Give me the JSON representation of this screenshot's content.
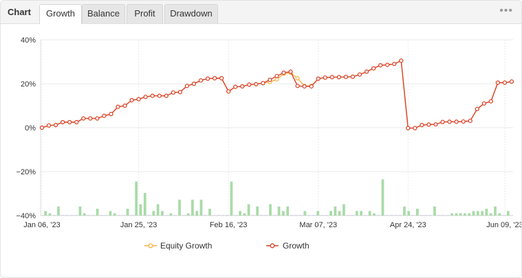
{
  "tabs": {
    "title": "Chart",
    "items": [
      {
        "label": "Growth",
        "active": true
      },
      {
        "label": "Balance",
        "active": false
      },
      {
        "label": "Profit",
        "active": false
      },
      {
        "label": "Drawdown",
        "active": false
      }
    ],
    "more_icon": "ellipsis-icon"
  },
  "colors": {
    "growth": "#d9412b",
    "equity": "#f5b342",
    "volume": "#a9dba9",
    "grid": "#e8e8e8"
  },
  "chart_data": {
    "type": "line",
    "title": "",
    "ylabel": "",
    "xlabel": "",
    "ylim": [
      -40,
      40
    ],
    "y_ticks": [
      40,
      20,
      0,
      -20,
      -40
    ],
    "y_tick_labels": [
      "40%",
      "20%",
      "0%",
      "−20%",
      "−40%"
    ],
    "x_tick_labels": [
      "Jan 06, '23",
      "Jan 25, '23",
      "Feb 16, '23",
      "Mar 07, '23",
      "Apr 24, '23",
      "Jun 09, '23"
    ],
    "x_tick_index": [
      0,
      14,
      27,
      40,
      53,
      67
    ],
    "grid": true,
    "legend_placement": "bottom-center",
    "series": [
      {
        "name": "Equity Growth",
        "values": [
          0.0,
          1.0,
          1.2,
          2.5,
          2.5,
          2.5,
          4.2,
          4.2,
          4.2,
          5.4,
          6.2,
          9.5,
          10.0,
          12.5,
          13.0,
          14.0,
          14.5,
          14.5,
          14.5,
          16.0,
          16.2,
          19.0,
          20.0,
          21.5,
          22.3,
          22.5,
          22.5,
          16.5,
          18.6,
          18.8,
          19.6,
          19.8,
          20.3,
          20.8,
          22.0,
          24.5,
          25.0,
          22.5,
          19.0,
          19.0,
          22.3,
          22.8,
          23.0,
          23.0,
          23.1,
          23.2,
          24.2,
          25.5,
          27.0,
          28.4,
          28.6,
          29.0,
          30.5,
          -0.2,
          -0.2,
          1.2,
          1.4,
          1.5,
          2.6,
          2.7,
          2.7,
          2.8,
          3.1,
          8.5,
          11.0,
          12.0,
          20.5,
          20.5,
          21.0
        ]
      },
      {
        "name": "Growth",
        "values": [
          0.0,
          1.0,
          1.2,
          2.5,
          2.5,
          2.5,
          4.2,
          4.2,
          4.2,
          5.4,
          6.2,
          9.5,
          10.0,
          12.5,
          13.0,
          14.0,
          14.5,
          14.5,
          14.5,
          16.0,
          16.2,
          19.0,
          20.0,
          21.5,
          22.3,
          22.5,
          22.5,
          16.5,
          18.6,
          18.8,
          19.6,
          19.8,
          20.3,
          21.8,
          23.5,
          25.0,
          25.5,
          19.0,
          18.8,
          18.8,
          22.3,
          22.8,
          23.0,
          23.0,
          23.1,
          23.2,
          24.2,
          25.5,
          27.0,
          28.4,
          28.6,
          29.0,
          30.5,
          -0.2,
          -0.2,
          1.2,
          1.4,
          1.5,
          2.6,
          2.7,
          2.7,
          2.8,
          3.1,
          8.5,
          11.0,
          12.0,
          20.5,
          20.5,
          21.0
        ]
      }
    ],
    "volume_bars": [
      2,
      1,
      0,
      4,
      0,
      0,
      0,
      0,
      4,
      1,
      0,
      0,
      3,
      0,
      0,
      2,
      1,
      0,
      0,
      3,
      0,
      15,
      5,
      10,
      0,
      2,
      5,
      2,
      0,
      1,
      0,
      7,
      0,
      1,
      7,
      2,
      7,
      0,
      3,
      0,
      0,
      0,
      0,
      15,
      0,
      2,
      1,
      5,
      0,
      4,
      0,
      0,
      5,
      0,
      4,
      2,
      4,
      0,
      0,
      0,
      2,
      0,
      0,
      2,
      0,
      0,
      2,
      4,
      2,
      5,
      0,
      0,
      2,
      2,
      0,
      2,
      1,
      0,
      16,
      0,
      0,
      0,
      0,
      4,
      2,
      0,
      3,
      0,
      0,
      0,
      4,
      0,
      0,
      0,
      1,
      1,
      1,
      1,
      1,
      2,
      2,
      2,
      3,
      1,
      4,
      1,
      0,
      2
    ]
  },
  "legend": [
    {
      "label": "Equity Growth"
    },
    {
      "label": "Growth"
    }
  ]
}
